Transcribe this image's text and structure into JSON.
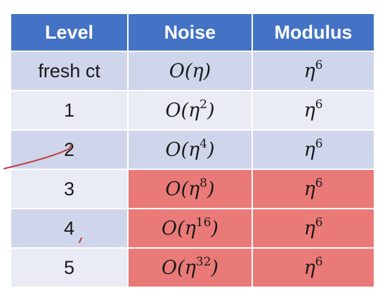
{
  "table": {
    "headers": [
      "Level",
      "Noise",
      "Modulus"
    ],
    "rows": [
      {
        "level": "fresh ct",
        "noise_base": "O(η",
        "noise_exp": "",
        "noise_close": ")",
        "mod_base": "η",
        "mod_exp": "6",
        "highlight": false
      },
      {
        "level": "1",
        "noise_base": "O(η",
        "noise_exp": "2",
        "noise_close": ")",
        "mod_base": "η",
        "mod_exp": "6",
        "highlight": false
      },
      {
        "level": "2",
        "noise_base": "O(η",
        "noise_exp": "4",
        "noise_close": ")",
        "mod_base": "η",
        "mod_exp": "6",
        "highlight": false
      },
      {
        "level": "3",
        "noise_base": "O(η",
        "noise_exp": "8",
        "noise_close": ")",
        "mod_base": "η",
        "mod_exp": "6",
        "highlight": true
      },
      {
        "level": "4",
        "noise_base": "O(η",
        "noise_exp": "16",
        "noise_close": ")",
        "mod_base": "η",
        "mod_exp": "6",
        "highlight": true
      },
      {
        "level": "5",
        "noise_base": "O(η",
        "noise_exp": "32",
        "noise_close": ")",
        "mod_base": "η",
        "mod_exp": "6",
        "highlight": true
      }
    ]
  },
  "colors": {
    "header_bg": "#4472c4",
    "row_dark": "#cfd5ea",
    "row_light": "#e9ebf5",
    "highlight": "#ea7a78",
    "pen_annotation": "#c0393b"
  }
}
